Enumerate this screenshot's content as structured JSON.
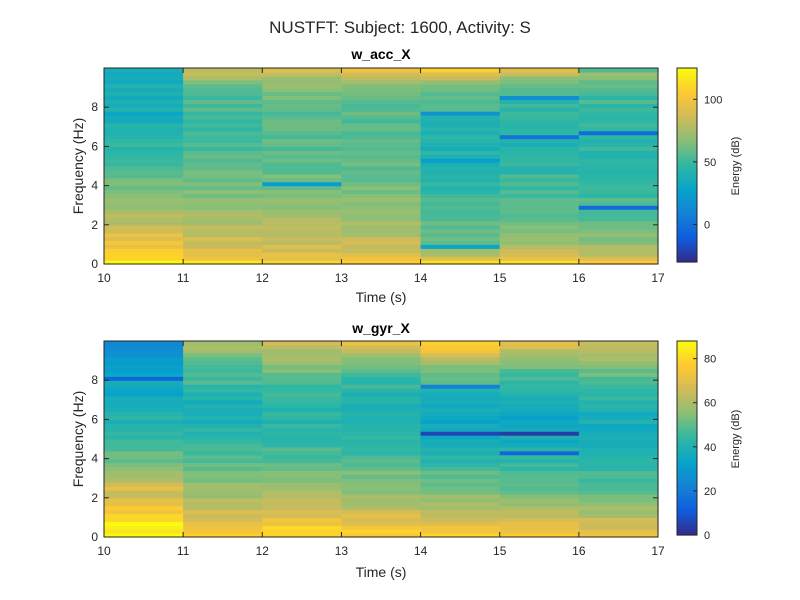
{
  "figure": {
    "suptitle": "NUSTFT: Subject: 1600, Activity: S"
  },
  "chart_data": [
    {
      "type": "heatmap",
      "title": "w_acc_X",
      "xlabel": "Time (s)",
      "ylabel": "Frequency (Hz)",
      "xlim": [
        10,
        17
      ],
      "ylim": [
        0,
        10
      ],
      "xticks": [
        10,
        11,
        12,
        13,
        14,
        15,
        16,
        17
      ],
      "yticks": [
        0,
        2,
        4,
        6,
        8
      ],
      "time_bins": [
        [
          10,
          11
        ],
        [
          11,
          12
        ],
        [
          12,
          13
        ],
        [
          13,
          14
        ],
        [
          14,
          15
        ],
        [
          15,
          16
        ],
        [
          16,
          17
        ]
      ],
      "freq_bin_hz": 0.2,
      "column_profiles_db": [
        [
          125,
          115,
          110,
          104,
          100,
          98,
          96,
          92,
          88,
          84,
          82,
          80,
          80,
          76,
          74,
          72,
          70,
          68,
          66,
          64,
          62,
          60,
          58,
          56,
          54,
          52,
          50,
          48,
          47,
          46,
          45,
          44,
          43,
          42,
          42,
          41,
          40,
          40,
          40,
          40,
          40,
          40,
          40,
          40,
          40,
          40,
          40,
          40,
          40,
          40
        ],
        [
          118,
          100,
          96,
          94,
          90,
          88,
          86,
          82,
          80,
          78,
          76,
          74,
          72,
          70,
          70,
          68,
          66,
          64,
          64,
          62,
          62,
          60,
          60,
          58,
          58,
          58,
          56,
          56,
          56,
          54,
          54,
          54,
          54,
          52,
          52,
          52,
          52,
          52,
          52,
          52,
          52,
          54,
          54,
          56,
          58,
          62,
          66,
          72,
          78,
          84
        ],
        [
          112,
          96,
          92,
          90,
          88,
          86,
          84,
          82,
          80,
          78,
          76,
          74,
          72,
          70,
          70,
          68,
          66,
          66,
          64,
          64,
          62,
          62,
          60,
          60,
          58,
          58,
          58,
          56,
          56,
          56,
          56,
          56,
          56,
          56,
          56,
          56,
          56,
          56,
          56,
          58,
          58,
          60,
          60,
          62,
          64,
          68,
          72,
          78,
          84,
          90
        ],
        [
          110,
          94,
          90,
          88,
          86,
          84,
          82,
          80,
          78,
          76,
          74,
          72,
          70,
          70,
          68,
          68,
          66,
          66,
          64,
          64,
          62,
          62,
          60,
          60,
          58,
          58,
          58,
          56,
          56,
          56,
          56,
          56,
          56,
          56,
          56,
          56,
          56,
          56,
          56,
          58,
          58,
          60,
          60,
          62,
          64,
          68,
          72,
          78,
          86,
          96
        ],
        [
          110,
          92,
          70,
          76,
          60,
          62,
          64,
          62,
          60,
          58,
          56,
          56,
          54,
          52,
          52,
          52,
          50,
          50,
          50,
          48,
          48,
          48,
          46,
          46,
          46,
          44,
          44,
          44,
          44,
          42,
          42,
          42,
          42,
          42,
          44,
          44,
          44,
          46,
          48,
          50,
          52,
          54,
          56,
          60,
          62,
          66,
          72,
          80,
          90,
          110
        ],
        [
          112,
          94,
          86,
          80,
          76,
          72,
          70,
          68,
          66,
          64,
          62,
          60,
          58,
          58,
          56,
          56,
          54,
          54,
          52,
          52,
          50,
          50,
          50,
          48,
          48,
          48,
          46,
          46,
          46,
          46,
          44,
          44,
          44,
          44,
          44,
          44,
          44,
          44,
          46,
          46,
          48,
          48,
          50,
          52,
          54,
          58,
          62,
          70,
          80,
          96
        ],
        [
          106,
          90,
          84,
          78,
          74,
          70,
          68,
          66,
          64,
          62,
          60,
          58,
          58,
          56,
          56,
          54,
          54,
          52,
          52,
          52,
          50,
          50,
          50,
          48,
          48,
          48,
          48,
          46,
          46,
          46,
          46,
          46,
          46,
          46,
          46,
          46,
          46,
          46,
          46,
          48,
          48,
          50,
          50,
          52,
          54,
          56,
          60,
          66,
          74,
          58
        ]
      ],
      "notches_db": [
        {
          "time_bin": 0,
          "freq_hz": 7.7,
          "value": 30
        },
        {
          "time_bin": 2,
          "freq_hz": 4.1,
          "value": 24
        },
        {
          "time_bin": 4,
          "freq_hz": 0.9,
          "value": 30
        },
        {
          "time_bin": 4,
          "freq_hz": 5.3,
          "value": 24
        },
        {
          "time_bin": 4,
          "freq_hz": 7.7,
          "value": 20
        },
        {
          "time_bin": 5,
          "freq_hz": 6.5,
          "value": 2
        },
        {
          "time_bin": 5,
          "freq_hz": 8.5,
          "value": 16
        },
        {
          "time_bin": 6,
          "freq_hz": 2.9,
          "value": -4
        },
        {
          "time_bin": 6,
          "freq_hz": 6.7,
          "value": -2
        }
      ],
      "colorbar": {
        "label": "Energy (dB)",
        "clim": [
          -30,
          125
        ],
        "ticks": [
          0,
          50,
          100
        ]
      }
    },
    {
      "type": "heatmap",
      "title": "w_gyr_X",
      "xlabel": "Time (s)",
      "ylabel": "Frequency (Hz)",
      "xlim": [
        10,
        17
      ],
      "ylim": [
        0,
        10
      ],
      "xticks": [
        10,
        11,
        12,
        13,
        14,
        15,
        16,
        17
      ],
      "yticks": [
        0,
        2,
        4,
        6,
        8
      ],
      "time_bins": [
        [
          10,
          11
        ],
        [
          11,
          12
        ],
        [
          12,
          13
        ],
        [
          13,
          14
        ],
        [
          14,
          15
        ],
        [
          15,
          16
        ],
        [
          16,
          17
        ]
      ],
      "freq_bin_hz": 0.2,
      "column_profiles_db": [
        [
          86,
          86,
          86,
          86,
          82,
          78,
          76,
          74,
          72,
          70,
          68,
          66,
          70,
          66,
          64,
          60,
          58,
          56,
          54,
          52,
          50,
          50,
          48,
          46,
          46,
          44,
          44,
          42,
          42,
          40,
          40,
          40,
          38,
          38,
          38,
          36,
          36,
          36,
          36,
          36,
          34,
          34,
          34,
          32,
          32,
          30,
          30,
          28,
          28,
          26
        ],
        [
          78,
          76,
          74,
          72,
          70,
          68,
          66,
          64,
          62,
          60,
          58,
          58,
          56,
          56,
          54,
          54,
          52,
          50,
          50,
          48,
          48,
          46,
          46,
          44,
          44,
          42,
          42,
          42,
          40,
          40,
          40,
          40,
          40,
          40,
          40,
          42,
          42,
          44,
          44,
          46,
          46,
          46,
          48,
          48,
          50,
          52,
          54,
          56,
          58,
          60
        ],
        [
          80,
          80,
          78,
          76,
          72,
          70,
          68,
          66,
          64,
          62,
          60,
          58,
          58,
          56,
          56,
          54,
          52,
          52,
          50,
          50,
          48,
          48,
          46,
          46,
          44,
          44,
          42,
          42,
          42,
          42,
          42,
          42,
          42,
          42,
          42,
          42,
          44,
          44,
          46,
          48,
          48,
          50,
          52,
          54,
          56,
          58,
          60,
          62,
          64,
          66
        ],
        [
          78,
          76,
          74,
          72,
          70,
          68,
          66,
          64,
          62,
          60,
          58,
          56,
          56,
          54,
          54,
          52,
          52,
          50,
          50,
          48,
          48,
          46,
          46,
          44,
          44,
          42,
          42,
          42,
          40,
          40,
          40,
          40,
          40,
          40,
          40,
          40,
          42,
          42,
          44,
          44,
          46,
          48,
          50,
          52,
          54,
          56,
          58,
          62,
          66,
          70
        ],
        [
          78,
          74,
          72,
          70,
          68,
          66,
          64,
          62,
          60,
          58,
          56,
          54,
          52,
          50,
          50,
          48,
          48,
          46,
          46,
          44,
          44,
          42,
          42,
          40,
          40,
          38,
          38,
          38,
          36,
          36,
          36,
          36,
          36,
          38,
          38,
          40,
          40,
          42,
          44,
          46,
          48,
          50,
          52,
          56,
          60,
          64,
          68,
          72,
          76,
          80
        ],
        [
          76,
          72,
          70,
          68,
          66,
          64,
          62,
          60,
          58,
          56,
          54,
          52,
          50,
          50,
          48,
          48,
          46,
          46,
          44,
          44,
          42,
          42,
          40,
          40,
          38,
          38,
          38,
          36,
          36,
          36,
          36,
          36,
          36,
          36,
          38,
          38,
          40,
          40,
          42,
          44,
          46,
          48,
          50,
          52,
          54,
          56,
          58,
          62,
          66,
          72
        ],
        [
          74,
          70,
          68,
          66,
          64,
          62,
          60,
          58,
          56,
          54,
          52,
          52,
          50,
          50,
          48,
          48,
          46,
          46,
          44,
          44,
          42,
          42,
          42,
          40,
          40,
          40,
          38,
          38,
          38,
          38,
          38,
          38,
          40,
          40,
          40,
          42,
          42,
          44,
          44,
          46,
          48,
          50,
          52,
          54,
          56,
          58,
          60,
          62,
          64,
          66
        ]
      ],
      "notches_db": [
        {
          "time_bin": 0,
          "freq_hz": 8.1,
          "value": 14
        },
        {
          "time_bin": 4,
          "freq_hz": 5.3,
          "value": 6
        },
        {
          "time_bin": 5,
          "freq_hz": 5.3,
          "value": 4
        },
        {
          "time_bin": 5,
          "freq_hz": 4.3,
          "value": 14
        },
        {
          "time_bin": 4,
          "freq_hz": 7.7,
          "value": 22
        }
      ],
      "colorbar": {
        "label": "Energy (dB)",
        "clim": [
          0,
          88
        ],
        "ticks": [
          0,
          20,
          40,
          60,
          80
        ]
      }
    }
  ]
}
